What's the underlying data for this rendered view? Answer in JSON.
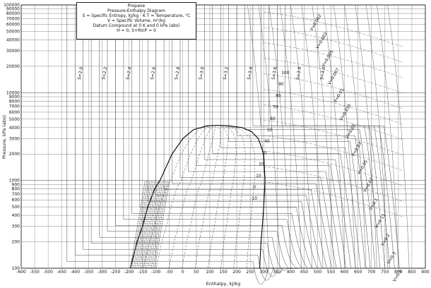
{
  "chart_data": {
    "type": "line",
    "title": "Propane",
    "subtitle": "Pressure-Enthalpy Diagram",
    "legend_lines": [
      "S = Specific Entropy, kJ/kg · K     T = Temperature, °C",
      "V = Specific Volume,  m³/kg",
      "Datum Compound at 0 K and 0 kPa (abs)",
      "H = 0,   S+RlnP = 0"
    ],
    "xlabel": "Enthalpy, kJ/kg",
    "ylabel": "Pressure, kPa (abs)",
    "x_scale": "linear",
    "y_scale": "log",
    "xlim": [
      -600,
      900
    ],
    "ylim": [
      100,
      100000
    ],
    "x_ticks": [
      -600,
      -550,
      -500,
      -450,
      -400,
      -350,
      -300,
      -250,
      -200,
      -150,
      -100,
      -50,
      0,
      50,
      100,
      150,
      200,
      250,
      300,
      350,
      400,
      450,
      500,
      550,
      600,
      650,
      700,
      750,
      800,
      850,
      900
    ],
    "y_ticks": [
      {
        "v": 100,
        "label": "100"
      },
      {
        "v": 200,
        "label": "200"
      },
      {
        "v": 300,
        "label": "300"
      },
      {
        "v": 400,
        "label": "400"
      },
      {
        "v": 500,
        "label": "500"
      },
      {
        "v": 600,
        "label": "600"
      },
      {
        "v": 700,
        "label": "700"
      },
      {
        "v": 800,
        "label": "800"
      },
      {
        "v": 900,
        "label": "900"
      },
      {
        "v": 1000,
        "label": "1000"
      },
      {
        "v": 2000,
        "label": "2000"
      },
      {
        "v": 3000,
        "label": "3000"
      },
      {
        "v": 4000,
        "label": "4000"
      },
      {
        "v": 5000,
        "label": "5000"
      },
      {
        "v": 6000,
        "label": "6000"
      },
      {
        "v": 7000,
        "label": "7000"
      },
      {
        "v": 8000,
        "label": "8000"
      },
      {
        "v": 9000,
        "label": "9000"
      },
      {
        "v": 10000,
        "label": "10000"
      },
      {
        "v": 20000,
        "label": "20000"
      },
      {
        "v": 30000,
        "label": "30000"
      },
      {
        "v": 40000,
        "label": "40000"
      },
      {
        "v": 50000,
        "label": "50000"
      },
      {
        "v": 60000,
        "label": "60000"
      },
      {
        "v": 70000,
        "label": "70000"
      },
      {
        "v": 80000,
        "label": "80000"
      },
      {
        "v": 90000,
        "label": "90000"
      },
      {
        "v": 100000,
        "label": "100000"
      }
    ],
    "grid": true,
    "saturation_dome": {
      "liquid": [
        [
          -195,
          100
        ],
        [
          -170,
          200
        ],
        [
          -150,
          300
        ],
        [
          -130,
          500
        ],
        [
          -105,
          800
        ],
        [
          -85,
          1000
        ],
        [
          -40,
          2000
        ],
        [
          0,
          3000
        ],
        [
          40,
          3800
        ],
        [
          90,
          4200
        ],
        [
          130,
          4250
        ]
      ],
      "vapor": [
        [
          130,
          4250
        ],
        [
          170,
          4200
        ],
        [
          220,
          4000
        ],
        [
          255,
          3600
        ],
        [
          280,
          3000
        ],
        [
          300,
          2000
        ],
        [
          305,
          1000
        ],
        [
          300,
          500
        ],
        [
          295,
          300
        ],
        [
          290,
          200
        ],
        [
          285,
          100
        ]
      ]
    },
    "isotherm_labels": [
      "-10",
      "0",
      "10",
      "20",
      "30",
      "40",
      "50",
      "60",
      "70",
      "80",
      "90",
      "100"
    ],
    "isentrope_labels": [
      "2.0",
      "2.2",
      "2.4",
      "2.6",
      "2.8",
      "3.0",
      "3.2",
      "3.4",
      "3.6",
      "3.8",
      "4.0"
    ],
    "isochore_labels": [
      "0.002",
      "0.003",
      "0.005",
      "0.007",
      "0.01",
      "0.015",
      "0.02",
      "0.03",
      "0.05",
      "0.07",
      "0.1",
      "0.15",
      "0.2",
      "0.3",
      "0.5"
    ]
  }
}
